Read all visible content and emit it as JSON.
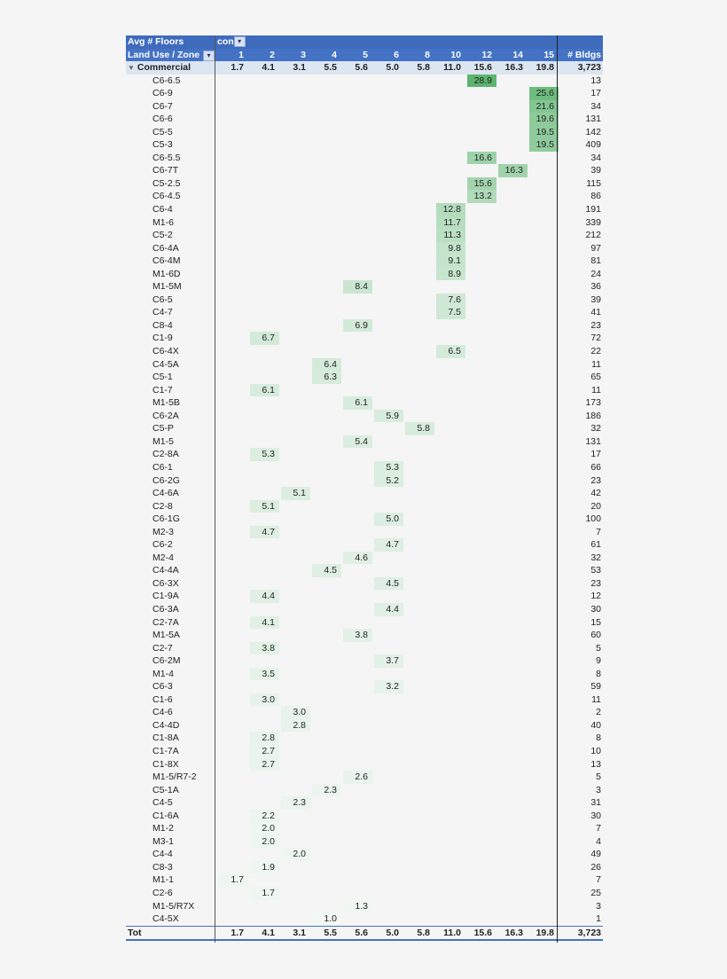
{
  "header": {
    "value_field": "Avg # Floors",
    "column_field": "con",
    "row_field": "Land Use / Zone",
    "bldgs_label": "# Bldgs",
    "filter_icon": "filter-dropdown-icon",
    "filter_glyph": "▾"
  },
  "columns": [
    "1",
    "2",
    "3",
    "4",
    "5",
    "6",
    "8",
    "10",
    "12",
    "14",
    "15"
  ],
  "colors": {
    "header_bg": "#4472c4",
    "group_bg": "#dce6f1",
    "scale_min": "#f2f8f4",
    "scale_max": "#5cb46f"
  },
  "group": {
    "label": "Commercial",
    "collapse_icon": "▼",
    "values": [
      "1.7",
      "4.1",
      "3.1",
      "5.5",
      "5.6",
      "5.0",
      "5.8",
      "11.0",
      "15.6",
      "16.3",
      "19.8"
    ],
    "bldgs": "3,723"
  },
  "rows": [
    {
      "zone": "C6-6.5",
      "col": "12",
      "value": "28.9",
      "bldgs": "13"
    },
    {
      "zone": "C6-9",
      "col": "15",
      "value": "25.6",
      "bldgs": "17"
    },
    {
      "zone": "C6-7",
      "col": "15",
      "value": "21.6",
      "bldgs": "34"
    },
    {
      "zone": "C6-6",
      "col": "15",
      "value": "19.6",
      "bldgs": "131"
    },
    {
      "zone": "C5-5",
      "col": "15",
      "value": "19.5",
      "bldgs": "142"
    },
    {
      "zone": "C5-3",
      "col": "15",
      "value": "19.5",
      "bldgs": "409"
    },
    {
      "zone": "C6-5.5",
      "col": "12",
      "value": "16.6",
      "bldgs": "34"
    },
    {
      "zone": "C6-7T",
      "col": "14",
      "value": "16.3",
      "bldgs": "39"
    },
    {
      "zone": "C5-2.5",
      "col": "12",
      "value": "15.6",
      "bldgs": "115"
    },
    {
      "zone": "C6-4.5",
      "col": "12",
      "value": "13.2",
      "bldgs": "86"
    },
    {
      "zone": "C6-4",
      "col": "10",
      "value": "12.8",
      "bldgs": "191"
    },
    {
      "zone": "M1-6",
      "col": "10",
      "value": "11.7",
      "bldgs": "339"
    },
    {
      "zone": "C5-2",
      "col": "10",
      "value": "11.3",
      "bldgs": "212"
    },
    {
      "zone": "C6-4A",
      "col": "10",
      "value": "9.8",
      "bldgs": "97"
    },
    {
      "zone": "C6-4M",
      "col": "10",
      "value": "9.1",
      "bldgs": "81"
    },
    {
      "zone": "M1-6D",
      "col": "10",
      "value": "8.9",
      "bldgs": "24"
    },
    {
      "zone": "M1-5M",
      "col": "5",
      "value": "8.4",
      "bldgs": "36"
    },
    {
      "zone": "C6-5",
      "col": "10",
      "value": "7.6",
      "bldgs": "39"
    },
    {
      "zone": "C4-7",
      "col": "10",
      "value": "7.5",
      "bldgs": "41"
    },
    {
      "zone": "C8-4",
      "col": "5",
      "value": "6.9",
      "bldgs": "23"
    },
    {
      "zone": "C1-9",
      "col": "2",
      "value": "6.7",
      "bldgs": "72"
    },
    {
      "zone": "C6-4X",
      "col": "10",
      "value": "6.5",
      "bldgs": "22"
    },
    {
      "zone": "C4-5A",
      "col": "4",
      "value": "6.4",
      "bldgs": "11"
    },
    {
      "zone": "C5-1",
      "col": "4",
      "value": "6.3",
      "bldgs": "65"
    },
    {
      "zone": "C1-7",
      "col": "2",
      "value": "6.1",
      "bldgs": "11"
    },
    {
      "zone": "M1-5B",
      "col": "5",
      "value": "6.1",
      "bldgs": "173"
    },
    {
      "zone": "C6-2A",
      "col": "6",
      "value": "5.9",
      "bldgs": "186"
    },
    {
      "zone": "C5-P",
      "col": "8",
      "value": "5.8",
      "bldgs": "32"
    },
    {
      "zone": "M1-5",
      "col": "5",
      "value": "5.4",
      "bldgs": "131"
    },
    {
      "zone": "C2-8A",
      "col": "2",
      "value": "5.3",
      "bldgs": "17"
    },
    {
      "zone": "C6-1",
      "col": "6",
      "value": "5.3",
      "bldgs": "66"
    },
    {
      "zone": "C6-2G",
      "col": "6",
      "value": "5.2",
      "bldgs": "23"
    },
    {
      "zone": "C4-6A",
      "col": "3",
      "value": "5.1",
      "bldgs": "42"
    },
    {
      "zone": "C2-8",
      "col": "2",
      "value": "5.1",
      "bldgs": "20"
    },
    {
      "zone": "C6-1G",
      "col": "6",
      "value": "5.0",
      "bldgs": "100"
    },
    {
      "zone": "M2-3",
      "col": "2",
      "value": "4.7",
      "bldgs": "7"
    },
    {
      "zone": "C6-2",
      "col": "6",
      "value": "4.7",
      "bldgs": "61"
    },
    {
      "zone": "M2-4",
      "col": "5",
      "value": "4.6",
      "bldgs": "32"
    },
    {
      "zone": "C4-4A",
      "col": "4",
      "value": "4.5",
      "bldgs": "53"
    },
    {
      "zone": "C6-3X",
      "col": "6",
      "value": "4.5",
      "bldgs": "23"
    },
    {
      "zone": "C1-9A",
      "col": "2",
      "value": "4.4",
      "bldgs": "12"
    },
    {
      "zone": "C6-3A",
      "col": "6",
      "value": "4.4",
      "bldgs": "30"
    },
    {
      "zone": "C2-7A",
      "col": "2",
      "value": "4.1",
      "bldgs": "15"
    },
    {
      "zone": "M1-5A",
      "col": "5",
      "value": "3.8",
      "bldgs": "60"
    },
    {
      "zone": "C2-7",
      "col": "2",
      "value": "3.8",
      "bldgs": "5"
    },
    {
      "zone": "C6-2M",
      "col": "6",
      "value": "3.7",
      "bldgs": "9"
    },
    {
      "zone": "M1-4",
      "col": "2",
      "value": "3.5",
      "bldgs": "8"
    },
    {
      "zone": "C6-3",
      "col": "6",
      "value": "3.2",
      "bldgs": "59"
    },
    {
      "zone": "C1-6",
      "col": "2",
      "value": "3.0",
      "bldgs": "11"
    },
    {
      "zone": "C4-6",
      "col": "3",
      "value": "3.0",
      "bldgs": "2"
    },
    {
      "zone": "C4-4D",
      "col": "3",
      "value": "2.8",
      "bldgs": "40"
    },
    {
      "zone": "C1-8A",
      "col": "2",
      "value": "2.8",
      "bldgs": "8"
    },
    {
      "zone": "C1-7A",
      "col": "2",
      "value": "2.7",
      "bldgs": "10"
    },
    {
      "zone": "C1-8X",
      "col": "2",
      "value": "2.7",
      "bldgs": "13"
    },
    {
      "zone": "M1-5/R7-2",
      "col": "5",
      "value": "2.6",
      "bldgs": "5"
    },
    {
      "zone": "C5-1A",
      "col": "4",
      "value": "2.3",
      "bldgs": "3"
    },
    {
      "zone": "C4-5",
      "col": "3",
      "value": "2.3",
      "bldgs": "31"
    },
    {
      "zone": "C1-6A",
      "col": "2",
      "value": "2.2",
      "bldgs": "30"
    },
    {
      "zone": "M1-2",
      "col": "2",
      "value": "2.0",
      "bldgs": "7"
    },
    {
      "zone": "M3-1",
      "col": "2",
      "value": "2.0",
      "bldgs": "4"
    },
    {
      "zone": "C4-4",
      "col": "3",
      "value": "2.0",
      "bldgs": "49"
    },
    {
      "zone": "C8-3",
      "col": "2",
      "value": "1.9",
      "bldgs": "26"
    },
    {
      "zone": "M1-1",
      "col": "1",
      "value": "1.7",
      "bldgs": "7"
    },
    {
      "zone": "C2-6",
      "col": "2",
      "value": "1.7",
      "bldgs": "25"
    },
    {
      "zone": "M1-5/R7X",
      "col": "5",
      "value": "1.3",
      "bldgs": "3"
    },
    {
      "zone": "C4-5X",
      "col": "4",
      "value": "1.0",
      "bldgs": "1"
    }
  ],
  "total": {
    "label": "Tot",
    "values": [
      "1.7",
      "4.1",
      "3.1",
      "5.5",
      "5.6",
      "5.0",
      "5.8",
      "11.0",
      "15.6",
      "16.3",
      "19.8"
    ],
    "bldgs": "3,723"
  }
}
